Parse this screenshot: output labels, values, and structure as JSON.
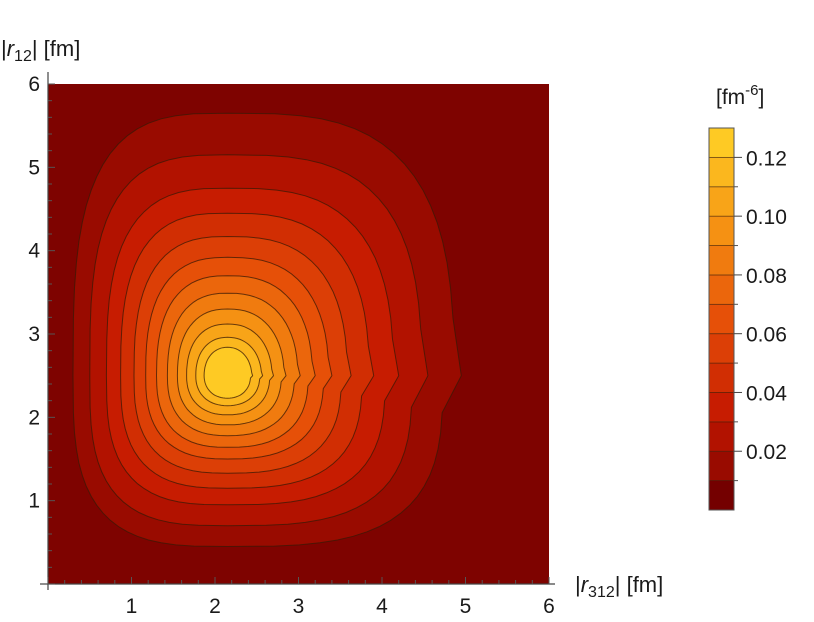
{
  "chart_data": {
    "type": "contour",
    "x_axis": {
      "label_prefix": "|",
      "label_var": "r",
      "label_sub": "312",
      "label_suffix": "| [fm]",
      "range": [
        0,
        6
      ],
      "ticks": [
        "1",
        "2",
        "3",
        "4",
        "5",
        "6"
      ]
    },
    "y_axis": {
      "label_prefix": "|",
      "label_var": "r",
      "label_sub": "12",
      "label_suffix": "| [fm]",
      "range": [
        0,
        6
      ],
      "ticks": [
        "1",
        "2",
        "3",
        "4",
        "5",
        "6"
      ]
    },
    "peak": {
      "x": 2.15,
      "y": 2.5,
      "value": 0.13
    },
    "contour_levels": [
      0.01,
      0.02,
      0.03,
      0.04,
      0.05,
      0.06,
      0.07,
      0.08,
      0.09,
      0.1,
      0.11,
      0.12
    ],
    "colorbar": {
      "unit_prefix": "[fm",
      "unit_sup": "-6",
      "unit_suffix": "]",
      "range": [
        0,
        0.13
      ],
      "tick_values": [
        0.02,
        0.04,
        0.06,
        0.08,
        0.1,
        0.12
      ],
      "tick_labels": [
        "0.02",
        "0.04",
        "0.06",
        "0.08",
        "0.10",
        "0.12"
      ]
    },
    "colors": {
      "low": "#740000",
      "high": "#ffd327",
      "contour_line": "#3a1a06",
      "axis": "#1a1a1a"
    }
  }
}
